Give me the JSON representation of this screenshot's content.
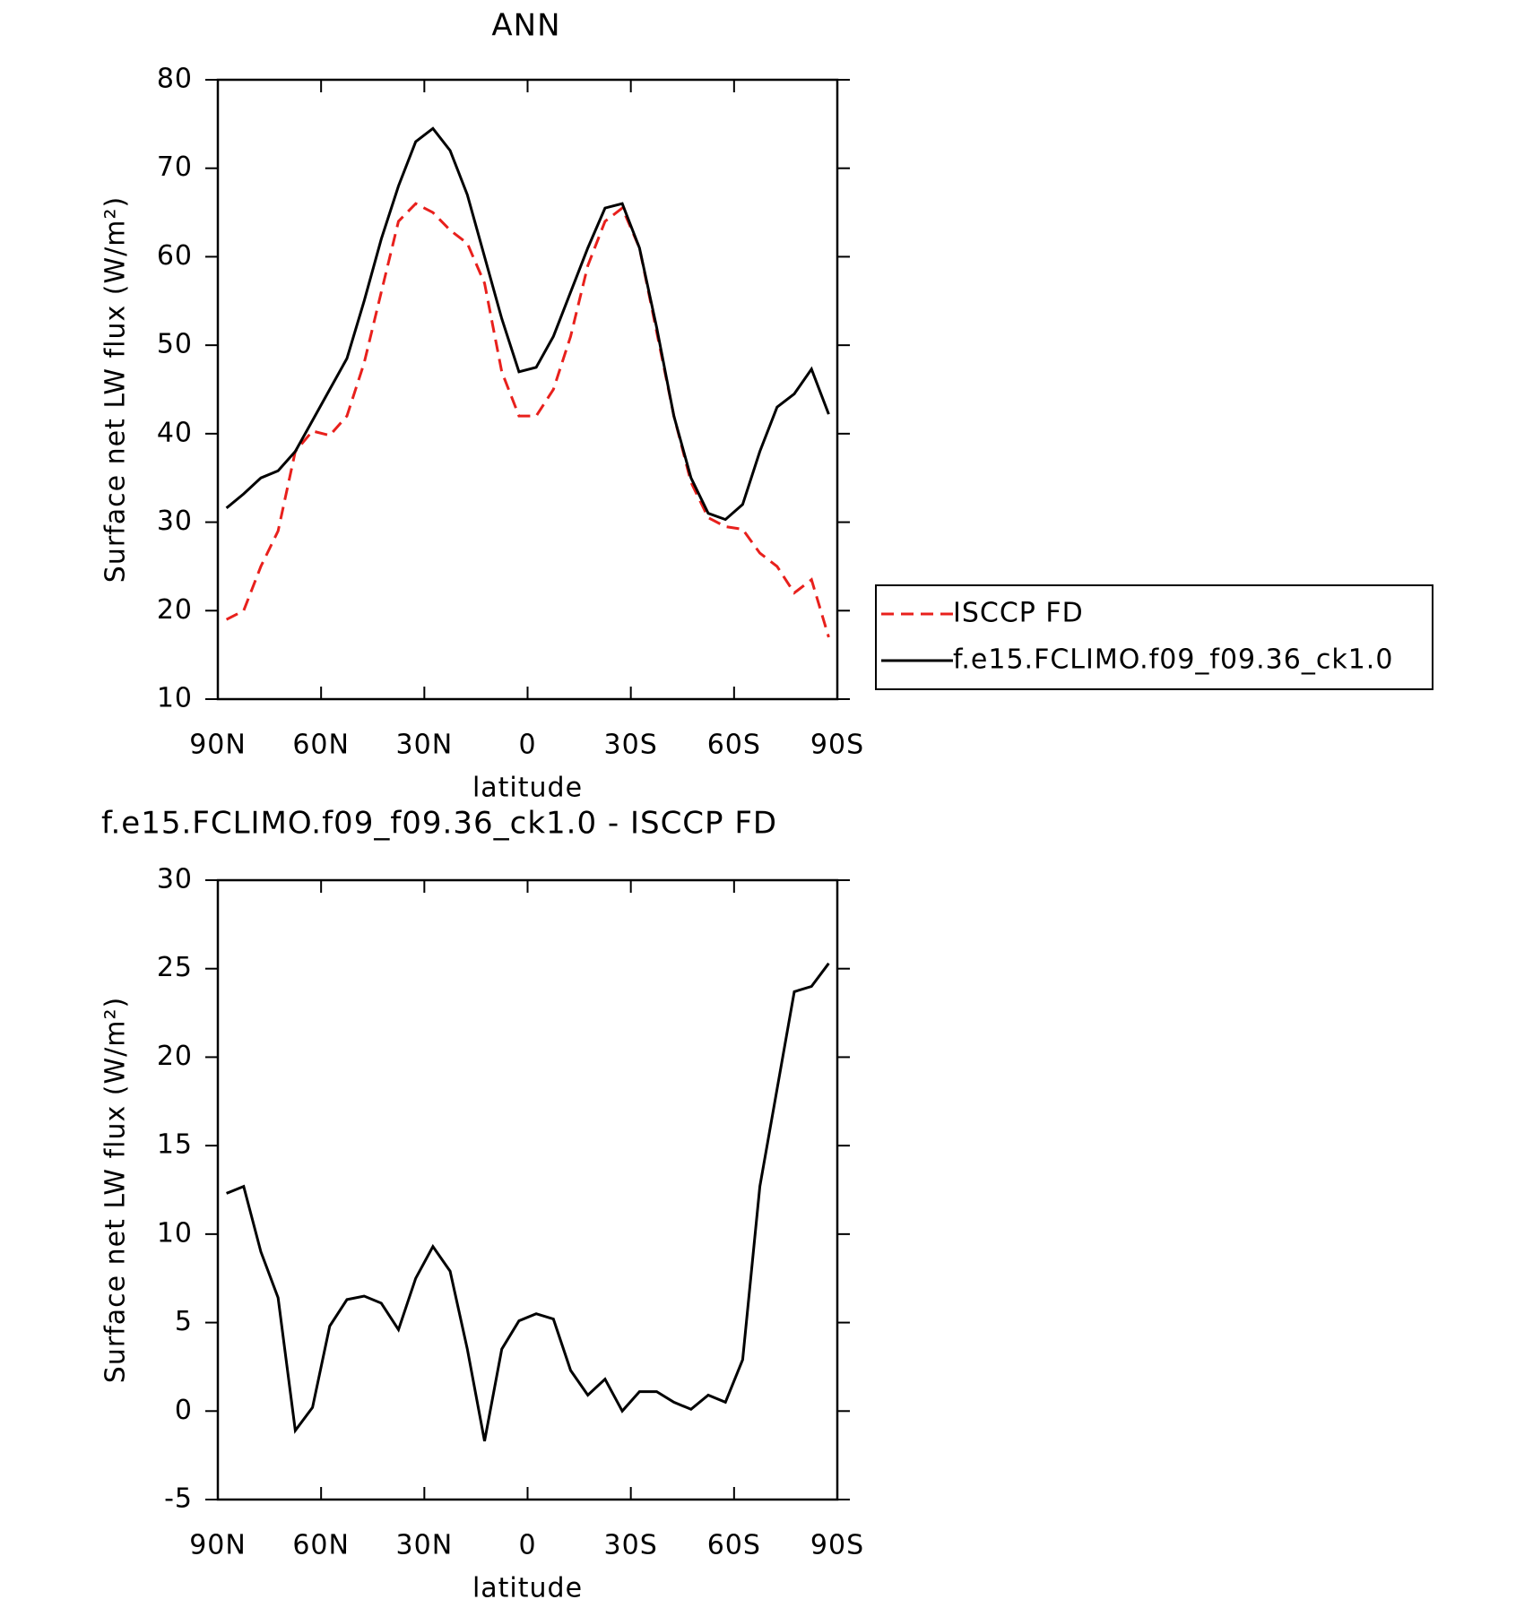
{
  "chart_data": [
    {
      "type": "line",
      "title": "ANN",
      "xlabel": "latitude",
      "ylabel": "Surface net LW flux (W/m²)",
      "x": [
        87.5,
        82.5,
        77.5,
        72.5,
        67.5,
        62.5,
        57.5,
        52.5,
        47.5,
        42.5,
        37.5,
        32.5,
        27.5,
        22.5,
        17.5,
        12.5,
        7.5,
        2.5,
        -2.5,
        -7.5,
        -12.5,
        -17.5,
        -22.5,
        -27.5,
        -32.5,
        -37.5,
        -42.5,
        -47.5,
        -52.5,
        -57.5,
        -62.5,
        -67.5,
        -72.5,
        -77.5,
        -82.5,
        -87.5
      ],
      "series": [
        {
          "name": "ISCCP FD",
          "color": "#e8201c",
          "dashed": true,
          "values": [
            19,
            20,
            25,
            29,
            38,
            40.3,
            39.8,
            42,
            48,
            56,
            64,
            66,
            65,
            63,
            61.5,
            57,
            47,
            42,
            42,
            45,
            51,
            59,
            64,
            65.5,
            61,
            51.5,
            42,
            34.5,
            30.5,
            29.5,
            29.2,
            26.5,
            25,
            22,
            23.5,
            17
          ]
        },
        {
          "name": "f.e15.FCLIMO.f09_f09.36_ck1.0",
          "color": "#000000",
          "dashed": false,
          "values": [
            31.6,
            33.2,
            35,
            35.8,
            38,
            41.5,
            45,
            48.5,
            55,
            62,
            68,
            73,
            74.5,
            72,
            67,
            60,
            53,
            47,
            47.5,
            51,
            56,
            61,
            65.5,
            66,
            61,
            52,
            42,
            35,
            31,
            30.3,
            32,
            38,
            43,
            44.5,
            47.3,
            42.2
          ]
        }
      ],
      "xlim": [
        90,
        -90
      ],
      "xticks": [
        {
          "value": 90,
          "label": "90N"
        },
        {
          "value": 60,
          "label": "60N"
        },
        {
          "value": 30,
          "label": "30N"
        },
        0,
        {
          "value": -30,
          "label": "30S"
        },
        {
          "value": -60,
          "label": "60S"
        },
        {
          "value": -90,
          "label": "90S"
        }
      ],
      "ylim": [
        10,
        80
      ],
      "yticks": [
        10,
        20,
        30,
        40,
        50,
        60,
        70,
        80
      ]
    },
    {
      "type": "line",
      "title": "f.e15.FCLIMO.f09_f09.36_ck1.0 - ISCCP FD",
      "xlabel": "latitude",
      "ylabel": "Surface net LW flux (W/m²)",
      "x": [
        87.5,
        82.5,
        77.5,
        72.5,
        67.5,
        62.5,
        57.5,
        52.5,
        47.5,
        42.5,
        37.5,
        32.5,
        27.5,
        22.5,
        17.5,
        12.5,
        7.5,
        2.5,
        -2.5,
        -7.5,
        -12.5,
        -17.5,
        -22.5,
        -27.5,
        -32.5,
        -37.5,
        -42.5,
        -47.5,
        -52.5,
        -57.5,
        -62.5,
        -67.5,
        -72.5,
        -77.5,
        -82.5,
        -87.5
      ],
      "series": [
        {
          "color": "#000000",
          "dashed": false,
          "values": [
            12.3,
            12.7,
            9,
            6.4,
            -1.1,
            0.2,
            4.8,
            6.3,
            6.5,
            6.1,
            4.6,
            7.5,
            9.3,
            7.9,
            3.5,
            -1.7,
            3.5,
            5.1,
            5.5,
            5.2,
            2.3,
            0.9,
            1.8,
            0,
            1.1,
            1.1,
            0.5,
            0.1,
            0.9,
            0.5,
            2.9,
            12.7,
            18.2,
            23.7,
            24,
            25.3
          ]
        }
      ],
      "xlim": [
        90,
        -90
      ],
      "xticks": [
        {
          "value": 90,
          "label": "90N"
        },
        {
          "value": 60,
          "label": "60N"
        },
        {
          "value": 30,
          "label": "30N"
        },
        0,
        {
          "value": -30,
          "label": "30S"
        },
        {
          "value": -60,
          "label": "60S"
        },
        {
          "value": -90,
          "label": "90S"
        }
      ],
      "ylim": [
        -5,
        30
      ],
      "yticks": [
        -5,
        0,
        5,
        10,
        15,
        20,
        25,
        30
      ]
    }
  ]
}
